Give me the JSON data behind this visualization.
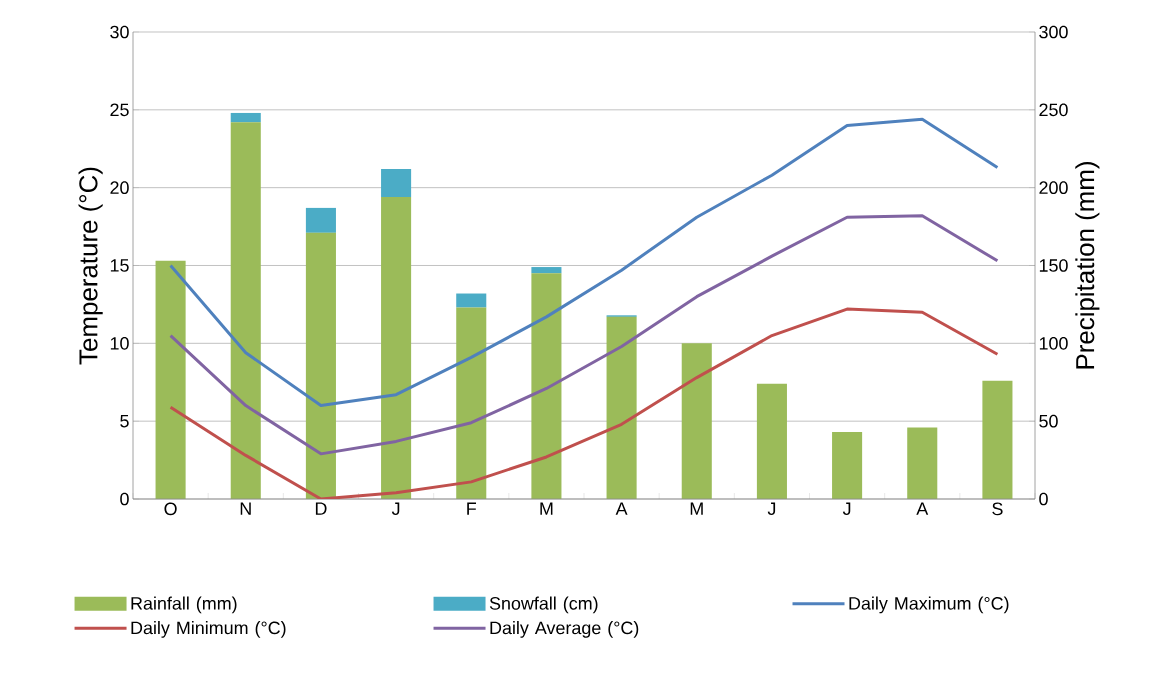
{
  "chart_data": {
    "type": "bar",
    "categories": [
      "O",
      "N",
      "D",
      "J",
      "F",
      "M",
      "A",
      "M",
      "J",
      "J",
      "A",
      "S"
    ],
    "stacked": true,
    "ylabel": "Temperature (°C)",
    "y2label": "Precipitation (mm)",
    "ylim": [
      0,
      30
    ],
    "yticks": [
      0,
      5,
      10,
      15,
      20,
      25,
      30
    ],
    "y2lim": [
      0,
      300
    ],
    "y2ticks": [
      0,
      50,
      100,
      150,
      200,
      250,
      300
    ],
    "grid": "y",
    "legend": "bottom",
    "series": [
      {
        "name": "Rainfall (mm)",
        "axis": "y2",
        "color": "#9bbb59",
        "values": [
          153,
          242,
          171,
          194,
          123,
          145,
          117,
          100,
          74,
          43,
          46,
          76
        ]
      },
      {
        "name": "Snowfall (cm)",
        "axis": "y2",
        "color": "#4bacc6",
        "values": [
          0,
          6,
          16,
          18,
          9,
          4,
          1,
          0,
          0,
          0,
          0,
          0
        ]
      },
      {
        "name": "Daily Maximum (°C)",
        "type": "line",
        "axis": "y",
        "color": "#4f81bd",
        "values": [
          15.0,
          9.4,
          6.0,
          6.7,
          9.1,
          11.7,
          14.7,
          18.1,
          20.8,
          24.0,
          24.4,
          21.3
        ]
      },
      {
        "name": "Daily Minimum (°C)",
        "type": "line",
        "axis": "y",
        "color": "#c0504d",
        "values": [
          5.9,
          2.8,
          0.0,
          0.4,
          1.1,
          2.7,
          4.8,
          7.8,
          10.5,
          12.2,
          12.0,
          9.3
        ]
      },
      {
        "name": "Daily Average (°C)",
        "type": "line",
        "axis": "y",
        "color": "#8064a2",
        "values": [
          10.5,
          6.0,
          2.9,
          3.7,
          4.9,
          7.1,
          9.8,
          13.0,
          15.6,
          18.1,
          18.2,
          15.3
        ]
      }
    ]
  }
}
